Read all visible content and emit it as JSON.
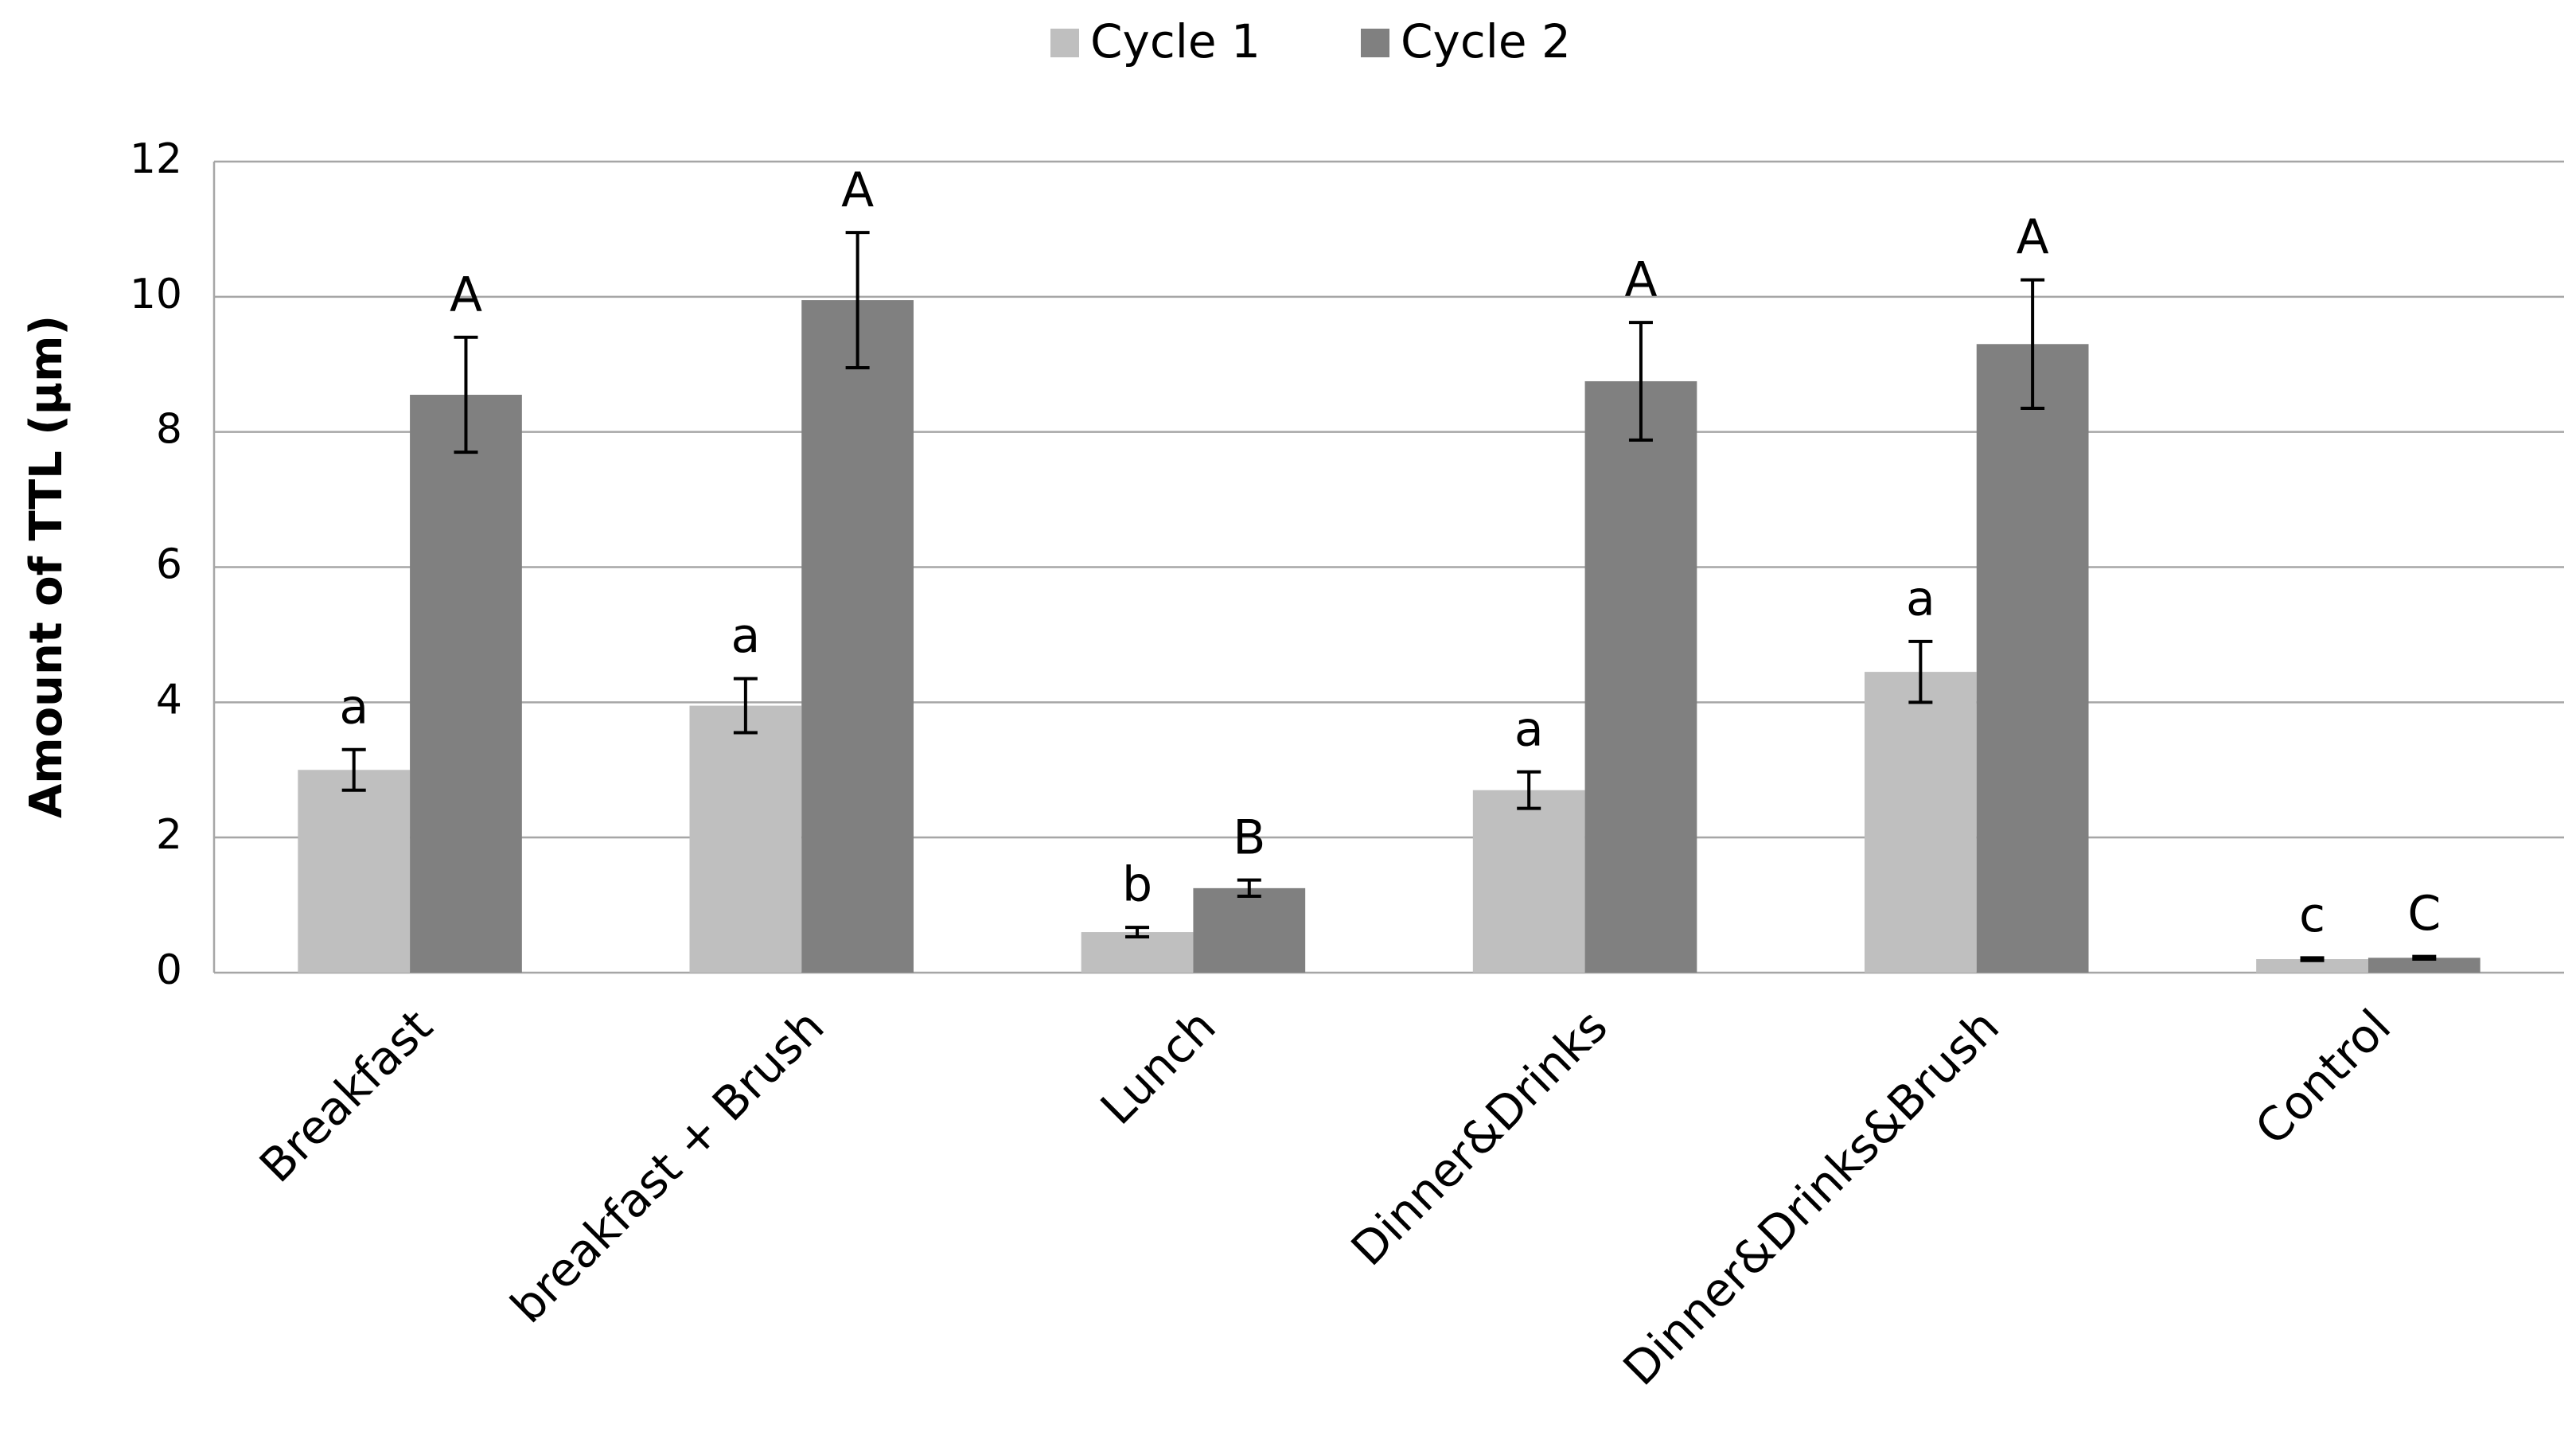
{
  "chart_data": {
    "type": "bar",
    "y_label": "Amount of TTL (µm)",
    "categories": [
      "Breakfast",
      "breakfast + Brush",
      "Lunch",
      "Dinner&Drinks",
      "Dinner&Drinks&Brush",
      "Control"
    ],
    "series": [
      {
        "name": "Cycle 1",
        "color": "#bfbfbf",
        "values": [
          3.0,
          3.95,
          0.6,
          2.7,
          4.45,
          0.2
        ],
        "errors": [
          0.3,
          0.4,
          0.07,
          0.27,
          0.45,
          0.02
        ],
        "labels": [
          "a",
          "a",
          "b",
          "a",
          "a",
          "c"
        ]
      },
      {
        "name": "Cycle 2",
        "color": "#808080",
        "values": [
          8.55,
          9.95,
          1.25,
          8.75,
          9.3,
          0.22
        ],
        "errors": [
          0.85,
          1.0,
          0.12,
          0.87,
          0.95,
          0.02
        ],
        "labels": [
          "A",
          "A",
          "B",
          "A",
          "A",
          "C"
        ]
      }
    ],
    "ylim": [
      0,
      12
    ],
    "yticks": [
      0,
      2,
      4,
      6,
      8,
      10,
      12
    ],
    "grid": true,
    "legend": "top"
  }
}
